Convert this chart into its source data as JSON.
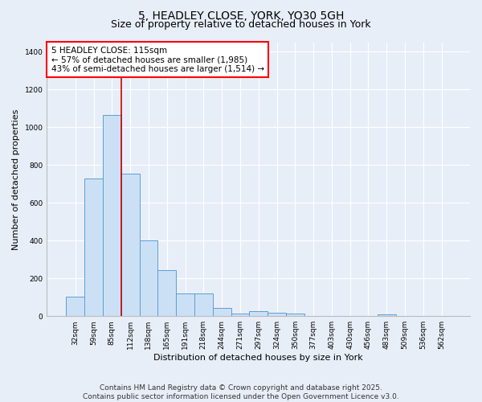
{
  "title": "5, HEADLEY CLOSE, YORK, YO30 5GH",
  "subtitle": "Size of property relative to detached houses in York",
  "xlabel": "Distribution of detached houses by size in York",
  "ylabel": "Number of detached properties",
  "categories": [
    "32sqm",
    "59sqm",
    "85sqm",
    "112sqm",
    "138sqm",
    "165sqm",
    "191sqm",
    "218sqm",
    "244sqm",
    "271sqm",
    "297sqm",
    "324sqm",
    "350sqm",
    "377sqm",
    "403sqm",
    "430sqm",
    "456sqm",
    "483sqm",
    "509sqm",
    "536sqm",
    "562sqm"
  ],
  "values": [
    105,
    730,
    1065,
    755,
    400,
    245,
    120,
    120,
    45,
    15,
    25,
    20,
    15,
    0,
    0,
    0,
    0,
    10,
    0,
    0,
    0
  ],
  "bar_color": "#cce0f5",
  "bar_edge_color": "#5a9fd4",
  "background_color": "#e8eef8",
  "grid_color": "#ffffff",
  "annotation_box_text": "5 HEADLEY CLOSE: 115sqm\n← 57% of detached houses are smaller (1,985)\n43% of semi-detached houses are larger (1,514) →",
  "vline_x": 2.5,
  "vline_color": "#cc0000",
  "ylim": [
    0,
    1450
  ],
  "yticks": [
    0,
    200,
    400,
    600,
    800,
    1000,
    1200,
    1400
  ],
  "footer_line1": "Contains HM Land Registry data © Crown copyright and database right 2025.",
  "footer_line2": "Contains public sector information licensed under the Open Government Licence v3.0.",
  "title_fontsize": 10,
  "subtitle_fontsize": 9,
  "axis_label_fontsize": 8,
  "tick_fontsize": 6.5,
  "annotation_fontsize": 7.5,
  "footer_fontsize": 6.5
}
